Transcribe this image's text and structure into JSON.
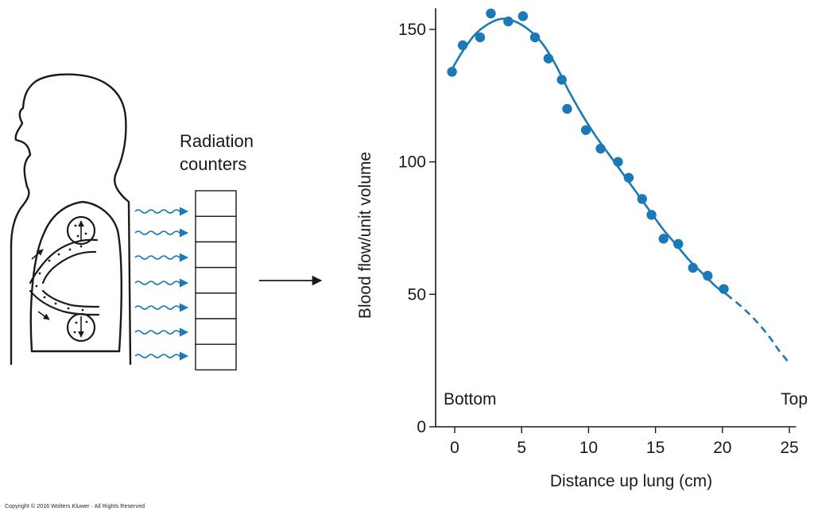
{
  "illustration": {
    "counter_label_line1": "Radiation",
    "counter_label_line2": "counters",
    "counter_cells": 7,
    "radiation_waves": 7,
    "accent_color": "#1b79b8"
  },
  "chart_data": {
    "type": "scatter",
    "xlabel": "Distance up lung (cm)",
    "ylabel": "Blood flow/unit volume",
    "xlim": [
      -1,
      25.5
    ],
    "ylim": [
      0,
      158
    ],
    "xticks": [
      0,
      5,
      10,
      15,
      20,
      25
    ],
    "yticks": [
      0,
      50,
      100,
      150
    ],
    "x_end_labels": {
      "left": "Bottom",
      "right": "Top"
    },
    "grid": false,
    "points": [
      [
        -0.2,
        134
      ],
      [
        0.6,
        144
      ],
      [
        1.9,
        147
      ],
      [
        2.7,
        156
      ],
      [
        4.0,
        153
      ],
      [
        5.1,
        155
      ],
      [
        6.0,
        147
      ],
      [
        7.0,
        139
      ],
      [
        8.0,
        131
      ],
      [
        8.4,
        120
      ],
      [
        9.8,
        112
      ],
      [
        10.9,
        105
      ],
      [
        12.2,
        100
      ],
      [
        13.0,
        94
      ],
      [
        14.0,
        86
      ],
      [
        14.7,
        80
      ],
      [
        15.6,
        71
      ],
      [
        16.7,
        69
      ],
      [
        17.8,
        60
      ],
      [
        18.9,
        57
      ],
      [
        20.1,
        52
      ]
    ],
    "fit_curve": {
      "solid": [
        [
          -0.2,
          135
        ],
        [
          0.5,
          141
        ],
        [
          1.5,
          148
        ],
        [
          2.5,
          152
        ],
        [
          3.5,
          154
        ],
        [
          4.5,
          153
        ],
        [
          5.5,
          150
        ],
        [
          6.5,
          145
        ],
        [
          7.5,
          137
        ],
        [
          8.5,
          127
        ],
        [
          9.5,
          118
        ],
        [
          10.5,
          110
        ],
        [
          11.5,
          103
        ],
        [
          12.5,
          96
        ],
        [
          13.5,
          89
        ],
        [
          14.5,
          82
        ],
        [
          15.5,
          75
        ],
        [
          16.5,
          69
        ],
        [
          17.5,
          63
        ],
        [
          18.5,
          58
        ],
        [
          19.5,
          53
        ],
        [
          20.3,
          50
        ]
      ],
      "dashed": [
        [
          20.3,
          50
        ],
        [
          21.5,
          45
        ],
        [
          22.5,
          40
        ],
        [
          23.5,
          34
        ],
        [
          24.2,
          29
        ],
        [
          25.0,
          24
        ]
      ]
    },
    "color": "#1b79b8"
  },
  "footer": {
    "copyright": "Copyright © 2016 Wolters Kluwer · All Rights Reserved"
  }
}
